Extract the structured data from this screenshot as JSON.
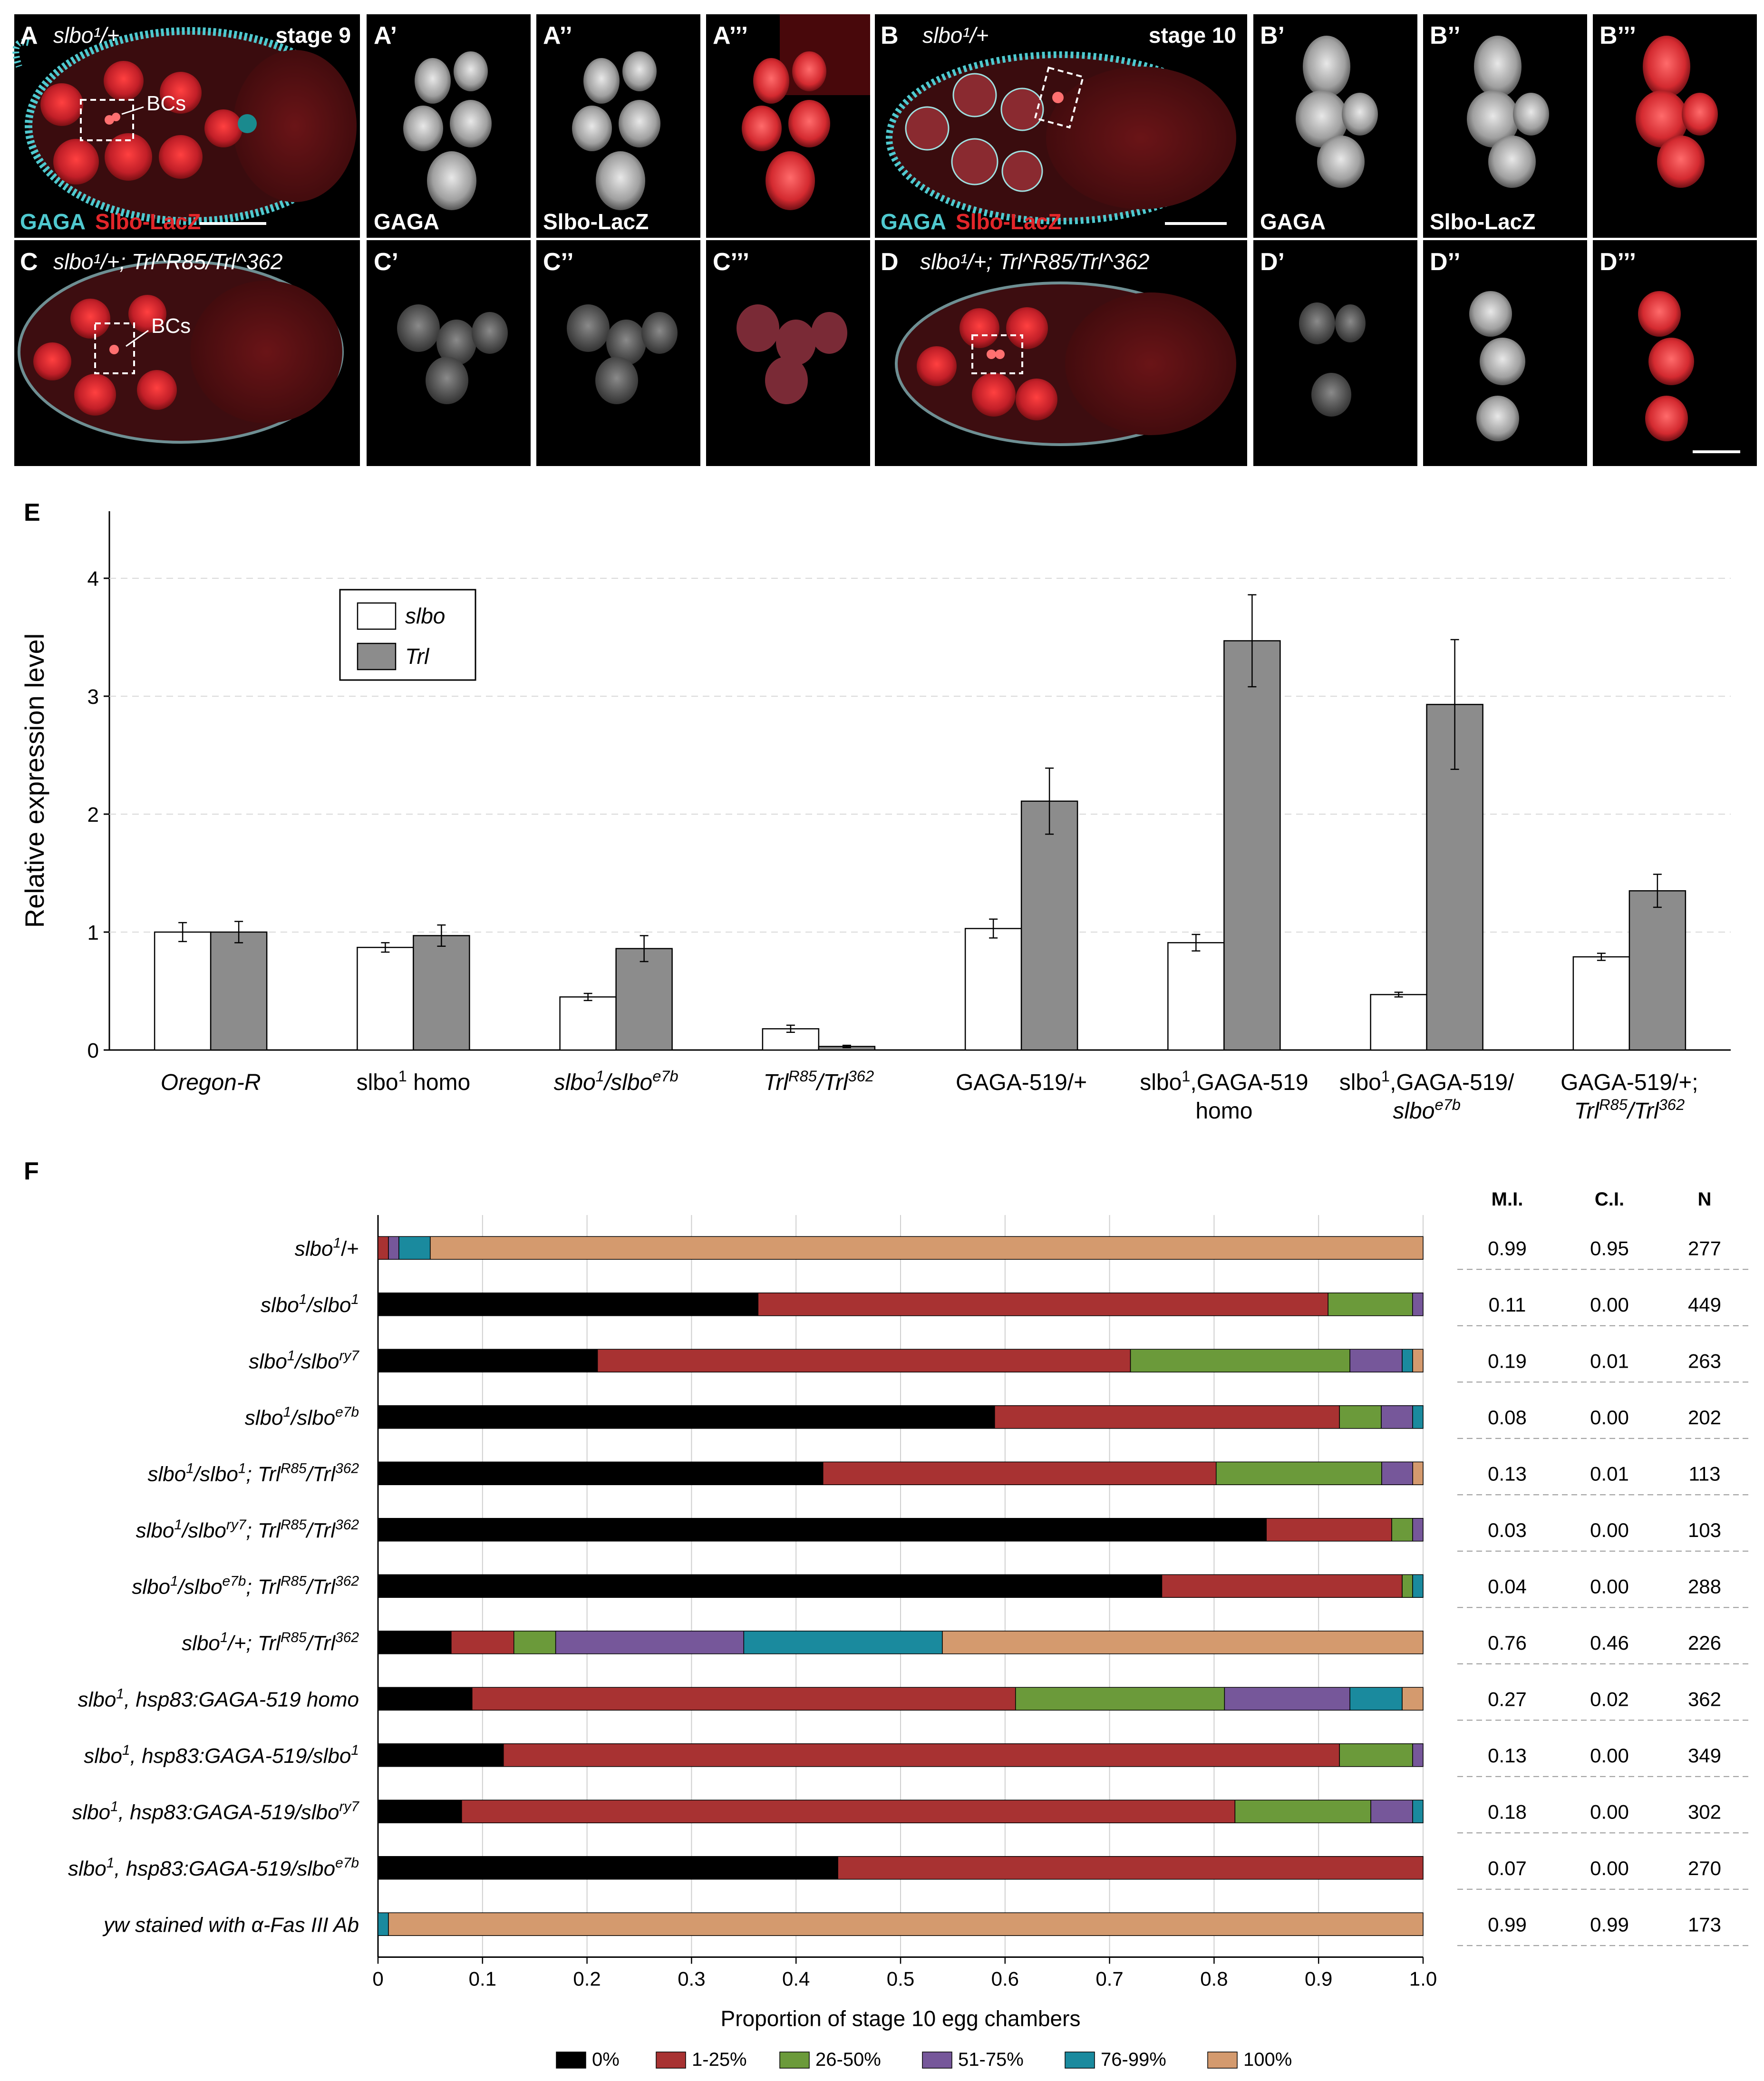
{
  "colors": {
    "gaga_cyan": "#4fc9cf",
    "lacz_red": "#e2262a",
    "slbo_bar": "#ffffff",
    "trl_bar": "#8c8c8c",
    "cat_0": "#000000",
    "cat_1_25": "#a83232",
    "cat_26_50": "#6b9a3a",
    "cat_51_75": "#76579a",
    "cat_76_99": "#1a8a9e",
    "cat_100": "#d49a6e"
  },
  "panels": [
    {
      "letter": "A",
      "genotype": "slbo¹/+",
      "stage": "stage 9",
      "annot": "BCs",
      "stain_a": "GAGA",
      "stain_b": "Slbo-LacZ"
    },
    {
      "letter": "A’",
      "stain": "GAGA"
    },
    {
      "letter": "A’’",
      "stain": "Slbo-LacZ"
    },
    {
      "letter": "A’’’"
    },
    {
      "letter": "B",
      "genotype": "slbo¹/+",
      "stage": "stage 10",
      "stain_a": "GAGA",
      "stain_b": "Slbo-LacZ"
    },
    {
      "letter": "B’",
      "stain": "GAGA"
    },
    {
      "letter": "B’’",
      "stain": "Slbo-LacZ"
    },
    {
      "letter": "B’’’"
    },
    {
      "letter": "C",
      "genotype": "slbo¹/+; Trl^R85/Trl^362",
      "annot": "BCs"
    },
    {
      "letter": "C’"
    },
    {
      "letter": "C’’"
    },
    {
      "letter": "C’’’"
    },
    {
      "letter": "D",
      "genotype": "slbo¹/+; Trl^R85/Trl^362"
    },
    {
      "letter": "D’"
    },
    {
      "letter": "D’’"
    },
    {
      "letter": "D’’’"
    }
  ],
  "panel_e_letter": "E",
  "panel_f_letter": "F",
  "chart_data": [
    {
      "type": "bar",
      "ylabel": "Relative expression level",
      "ylim": [
        0,
        4.5
      ],
      "yticks": [
        "0",
        "1",
        "2",
        "3",
        "4"
      ],
      "legend": [
        "slbo",
        "Trl"
      ],
      "legend_position": "top-left",
      "categories": [
        "Oregon-R",
        "slbo¹ homo",
        "slbo¹/slbo^e7b",
        "Trl^R85/Trl^362",
        "GAGA-519/+",
        "slbo¹,GAGA-519 homo",
        "slbo¹,GAGA-519/slbo^e7b",
        "GAGA-519/+;Trl^R85/Trl^362"
      ],
      "category_lines": [
        [
          "Oregon-R"
        ],
        [
          "slbo¹ homo"
        ],
        [
          "slbo¹/slbo^e7b"
        ],
        [
          "Trl^R85/Trl^362"
        ],
        [
          "GAGA-519/+"
        ],
        [
          "slbo¹,GAGA-519",
          "homo"
        ],
        [
          "slbo¹,GAGA-519/",
          "slbo^e7b"
        ],
        [
          "GAGA-519/+;",
          "Trl^R85/Trl^362"
        ]
      ],
      "series": [
        {
          "name": "slbo",
          "values": [
            1.0,
            0.87,
            0.45,
            0.18,
            1.03,
            0.91,
            0.47,
            0.79
          ],
          "errors": [
            0.08,
            0.04,
            0.03,
            0.03,
            0.08,
            0.07,
            0.02,
            0.03
          ]
        },
        {
          "name": "Trl",
          "values": [
            1.0,
            0.97,
            0.86,
            0.03,
            2.11,
            3.47,
            2.93,
            1.35
          ],
          "errors": [
            0.09,
            0.09,
            0.11,
            0.01,
            0.28,
            0.39,
            0.55,
            0.14
          ]
        }
      ],
      "grid": true
    },
    {
      "type": "bar",
      "orientation": "horizontal-stacked",
      "xlabel": "Proportion of stage 10 egg chambers",
      "xlim": [
        0,
        1.0
      ],
      "xticks": [
        "0",
        "0.1",
        "0.2",
        "0.3",
        "0.4",
        "0.5",
        "0.6",
        "0.7",
        "0.8",
        "0.9",
        "1.0"
      ],
      "grid": true,
      "legend_position": "bottom",
      "legend": [
        "0%",
        "1-25%",
        "26-50%",
        "51-75%",
        "76-99%",
        "100%"
      ],
      "table_headers": [
        "M.I.",
        "C.I.",
        "N"
      ],
      "rows": [
        {
          "label": "slbo¹/+",
          "values": [
            0.0,
            0.01,
            0.0,
            0.01,
            0.03,
            0.95
          ],
          "mi": "0.99",
          "ci": "0.95",
          "n": "277"
        },
        {
          "label": "slbo¹/slbo¹",
          "values": [
            0.36,
            0.54,
            0.08,
            0.01,
            0.0,
            0.0
          ],
          "mi": "0.11",
          "ci": "0.00",
          "n": "449"
        },
        {
          "label": "slbo¹/slbo^ry7",
          "values": [
            0.21,
            0.51,
            0.21,
            0.05,
            0.01,
            0.01
          ],
          "mi": "0.19",
          "ci": "0.01",
          "n": "263"
        },
        {
          "label": "slbo¹/slbo^e7b",
          "values": [
            0.59,
            0.33,
            0.04,
            0.03,
            0.01,
            0.0
          ],
          "mi": "0.08",
          "ci": "0.00",
          "n": "202"
        },
        {
          "label": "slbo¹/slbo¹; Trl^R85/Trl^362",
          "values": [
            0.43,
            0.38,
            0.16,
            0.03,
            0.0,
            0.01
          ],
          "mi": "0.13",
          "ci": "0.01",
          "n": "113"
        },
        {
          "label": "slbo¹/slbo^ry7; Trl^R85/Trl^362",
          "values": [
            0.85,
            0.12,
            0.02,
            0.01,
            0.0,
            0.0
          ],
          "mi": "0.03",
          "ci": "0.00",
          "n": "103"
        },
        {
          "label": "slbo¹/slbo^e7b; Trl^R85/Trl^362",
          "values": [
            0.75,
            0.23,
            0.01,
            0.0,
            0.01,
            0.0
          ],
          "mi": "0.04",
          "ci": "0.00",
          "n": "288"
        },
        {
          "label": "slbo¹/+; Trl^R85/Trl^362",
          "values": [
            0.07,
            0.06,
            0.04,
            0.18,
            0.19,
            0.46
          ],
          "mi": "0.76",
          "ci": "0.46",
          "n": "226"
        },
        {
          "label": "slbo¹, hsp83:GAGA-519 homo",
          "values": [
            0.09,
            0.52,
            0.2,
            0.12,
            0.05,
            0.02
          ],
          "mi": "0.27",
          "ci": "0.02",
          "n": "362"
        },
        {
          "label": "slbo¹, hsp83:GAGA-519/slbo¹",
          "values": [
            0.12,
            0.8,
            0.07,
            0.01,
            0.0,
            0.0
          ],
          "mi": "0.13",
          "ci": "0.00",
          "n": "349"
        },
        {
          "label": "slbo¹, hsp83:GAGA-519/slbo^ry7",
          "values": [
            0.08,
            0.74,
            0.13,
            0.04,
            0.01,
            0.0
          ],
          "mi": "0.18",
          "ci": "0.00",
          "n": "302"
        },
        {
          "label": "slbo¹, hsp83:GAGA-519/slbo^e7b",
          "values": [
            0.44,
            0.56,
            0.0,
            0.0,
            0.0,
            0.0
          ],
          "mi": "0.07",
          "ci": "0.00",
          "n": "270"
        },
        {
          "label": "yw stained with α-Fas III Ab",
          "values": [
            0.0,
            0.0,
            0.0,
            0.0,
            0.01,
            0.99
          ],
          "mi": "0.99",
          "ci": "0.99",
          "n": "173"
        }
      ]
    }
  ]
}
